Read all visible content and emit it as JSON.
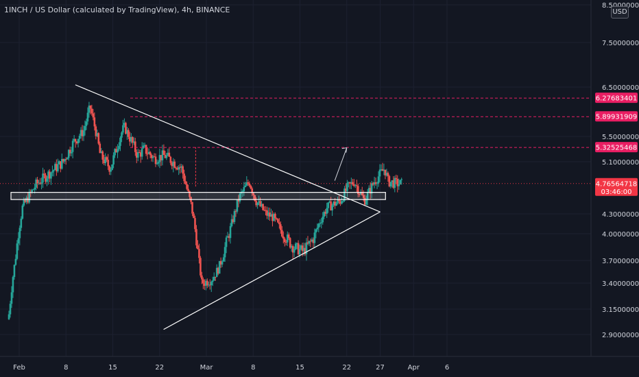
{
  "header": {
    "title": "1INCH / US Dollar (calculated by TradingView), 4h, BINANCE",
    "currency_label": "USD"
  },
  "chart_data": {
    "type": "candlestick",
    "symbol": "1INCH / USD",
    "interval": "4h",
    "exchange": "BINANCE",
    "y_axis_ticks": [
      {
        "value": 8.5,
        "label": "8.50000000"
      },
      {
        "value": 7.5,
        "label": "7.50000000"
      },
      {
        "value": 6.5,
        "label": "6.50000000"
      },
      {
        "value": 5.5,
        "label": "5.50000000"
      },
      {
        "value": 5.1,
        "label": "5.10000000"
      },
      {
        "value": 4.3,
        "label": "4.30000000"
      },
      {
        "value": 4.0,
        "label": "4.00000000"
      },
      {
        "value": 3.7,
        "label": "3.70000000"
      },
      {
        "value": 3.4,
        "label": "3.40000000"
      },
      {
        "value": 3.15,
        "label": "3.15000000"
      },
      {
        "value": 2.9,
        "label": "2.90000000"
      }
    ],
    "x_axis_ticks": [
      {
        "label": "Feb",
        "day": 1
      },
      {
        "label": "8",
        "day": 8
      },
      {
        "label": "15",
        "day": 15
      },
      {
        "label": "22",
        "day": 22
      },
      {
        "label": "Mar",
        "day": 29
      },
      {
        "label": "8",
        "day": 36
      },
      {
        "label": "15",
        "day": 43
      },
      {
        "label": "22",
        "day": 50
      },
      {
        "label": "27",
        "day": 55
      },
      {
        "label": "Apr",
        "day": 60
      },
      {
        "label": "6",
        "day": 65
      }
    ],
    "price_labels": [
      {
        "value": 6.27683401,
        "label": "6.27683401",
        "color": "#e91e63",
        "style": "dashed"
      },
      {
        "value": 5.89931909,
        "label": "5.89931909",
        "color": "#e91e63",
        "style": "dashed"
      },
      {
        "value": 5.32525468,
        "label": "5.32525468",
        "color": "#e91e63",
        "style": "dashed"
      },
      {
        "value": 4.76564718,
        "label": "4.76564718",
        "color": "#f23645",
        "style": "dotted",
        "countdown": "03:46:00"
      }
    ],
    "drawings": {
      "upper_trendline": [
        {
          "day": 9.4,
          "value": 6.55
        },
        {
          "day": 55,
          "value": 4.33
        }
      ],
      "lower_trendline": [
        {
          "day": 22.6,
          "value": 2.95
        },
        {
          "day": 55,
          "value": 4.33
        }
      ],
      "support_zone": {
        "day_start": 1,
        "day_end": 55.8,
        "value_low": 4.52,
        "value_high": 4.63
      },
      "breakout_level": {
        "day": 27.4,
        "value_from": 4.72,
        "value_to": 5.33
      },
      "projection_arrow": [
        {
          "day": 48.2,
          "value": 4.81
        },
        {
          "day": 50,
          "value": 5.32
        }
      ]
    },
    "colors": {
      "background": "#131722",
      "up": "#26a69a",
      "down": "#ef5350",
      "drawing": "#ffffff",
      "level_line": "#f23645",
      "axis_text": "#d1d4dc"
    }
  }
}
